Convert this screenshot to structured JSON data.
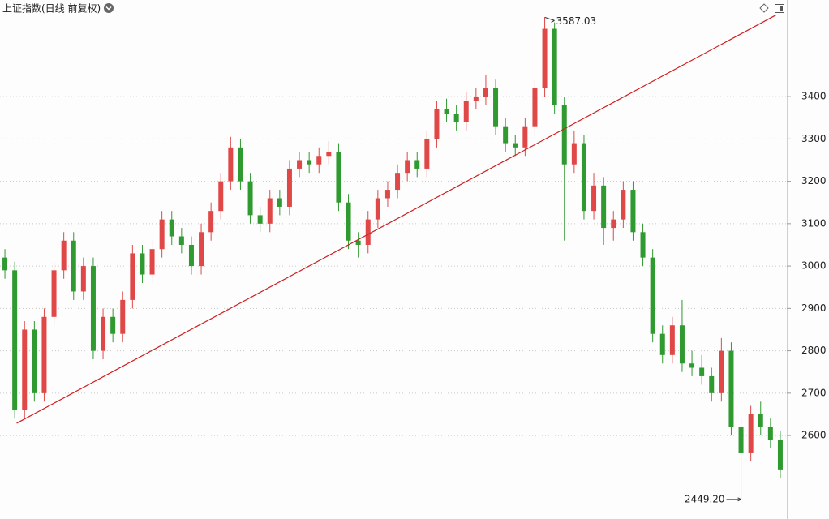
{
  "chart_data": {
    "type": "candlestick",
    "title": "上证指数(日线 前复权)",
    "ylim": [
      2403,
      3628
    ],
    "yticks": [
      2600,
      2700,
      2800,
      2900,
      3000,
      3100,
      3200,
      3300,
      3400
    ],
    "grid": true,
    "up_color": "#e04848",
    "down_color": "#2f9a2f",
    "open": [
      3020,
      2990,
      2660,
      2850,
      2700,
      2880,
      2990,
      3060,
      2940,
      3000,
      2800,
      2880,
      2840,
      2920,
      3030,
      2980,
      3040,
      3110,
      3070,
      3050,
      3000,
      3080,
      3130,
      3200,
      3280,
      3200,
      3120,
      3100,
      3160,
      3140,
      3230,
      3250,
      3240,
      3260,
      3270,
      3150,
      3060,
      3050,
      3110,
      3160,
      3180,
      3220,
      3250,
      3230,
      3300,
      3370,
      3360,
      3340,
      3390,
      3400,
      3420,
      3330,
      3290,
      3280,
      3330,
      3420,
      3560,
      3380,
      3240,
      3290,
      3130,
      3190,
      3090,
      3110,
      3180,
      3080,
      3020,
      2840,
      2790,
      2860,
      2770,
      2760,
      2740,
      2700,
      2800,
      2620,
      2560,
      2650,
      2620,
      2590
    ],
    "high": [
      3040,
      3010,
      2870,
      2870,
      2900,
      3010,
      3080,
      3080,
      3020,
      3020,
      2900,
      2900,
      2940,
      3050,
      3050,
      3060,
      3130,
      3130,
      3090,
      3070,
      3100,
      3150,
      3220,
      3305,
      3300,
      3220,
      3140,
      3180,
      3180,
      3250,
      3270,
      3270,
      3280,
      3295,
      3290,
      3170,
      3080,
      3130,
      3180,
      3200,
      3240,
      3270,
      3270,
      3320,
      3390,
      3395,
      3380,
      3410,
      3420,
      3450,
      3440,
      3350,
      3310,
      3350,
      3440,
      3587.03,
      3575,
      3400,
      3320,
      3310,
      3220,
      3210,
      3130,
      3200,
      3200,
      3100,
      3040,
      2860,
      2880,
      2920,
      2800,
      2790,
      2760,
      2830,
      2820,
      2640,
      2670,
      2680,
      2640,
      2610
    ],
    "low": [
      2970,
      2640,
      2640,
      2680,
      2680,
      2860,
      2970,
      2920,
      2920,
      2780,
      2780,
      2820,
      2820,
      2900,
      2960,
      2960,
      3020,
      3050,
      3030,
      2980,
      2980,
      3060,
      3110,
      3180,
      3180,
      3100,
      3080,
      3080,
      3120,
      3120,
      3210,
      3220,
      3220,
      3240,
      3130,
      3040,
      3020,
      3030,
      3090,
      3140,
      3160,
      3200,
      3210,
      3210,
      3280,
      3340,
      3320,
      3320,
      3370,
      3380,
      3310,
      3270,
      3260,
      3260,
      3310,
      3400,
      3360,
      3060,
      3220,
      3110,
      3110,
      3050,
      3060,
      3090,
      3060,
      3000,
      2820,
      2770,
      2770,
      2750,
      2740,
      2720,
      2680,
      2680,
      2600,
      2449.2,
      2540,
      2600,
      2570,
      2500
    ],
    "close": [
      2990,
      2660,
      2850,
      2700,
      2880,
      2990,
      3060,
      2940,
      3000,
      2800,
      2880,
      2840,
      2920,
      3030,
      2980,
      3040,
      3110,
      3070,
      3050,
      3000,
      3080,
      3130,
      3200,
      3280,
      3200,
      3120,
      3100,
      3160,
      3140,
      3230,
      3250,
      3240,
      3260,
      3270,
      3150,
      3060,
      3050,
      3110,
      3160,
      3180,
      3220,
      3250,
      3230,
      3300,
      3370,
      3360,
      3340,
      3390,
      3400,
      3420,
      3330,
      3290,
      3280,
      3330,
      3420,
      3560,
      3380,
      3240,
      3290,
      3130,
      3190,
      3090,
      3110,
      3180,
      3080,
      3020,
      2840,
      2790,
      2860,
      2770,
      2760,
      2740,
      2700,
      2800,
      2620,
      2560,
      2650,
      2620,
      2590,
      2520
    ],
    "extreme_labels": {
      "max": "3587.03",
      "min": "2449.20"
    },
    "trendline": {
      "color": "#cc1f1f",
      "start": [
        1.2,
        2629
      ],
      "end": [
        78.6,
        3593
      ]
    }
  }
}
